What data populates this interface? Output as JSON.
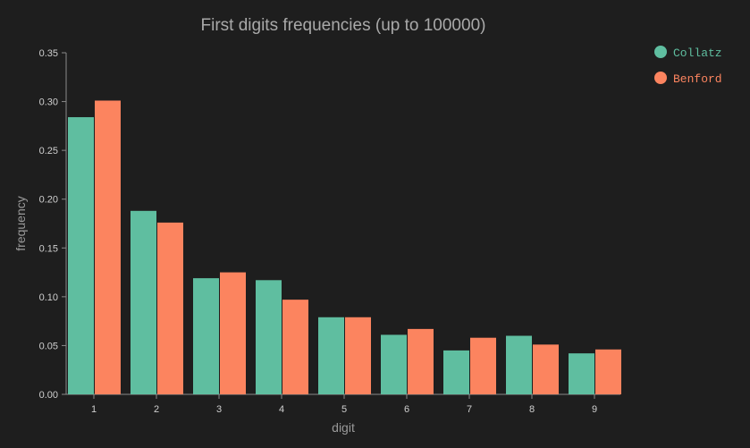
{
  "chart_data": {
    "type": "bar",
    "title": "First digits frequencies (up to 100000)",
    "xlabel": "digit",
    "ylabel": "frequency",
    "categories": [
      "1",
      "2",
      "3",
      "4",
      "5",
      "6",
      "7",
      "8",
      "9"
    ],
    "ylim": [
      0,
      0.35
    ],
    "yticks": [
      "0.00",
      "0.05",
      "0.10",
      "0.15",
      "0.20",
      "0.25",
      "0.30",
      "0.35"
    ],
    "grid": false,
    "legend_position": "top-right",
    "series": [
      {
        "name": "Collatz",
        "color": "#5fbea0",
        "values": [
          0.284,
          0.188,
          0.119,
          0.117,
          0.079,
          0.061,
          0.045,
          0.06,
          0.042
        ]
      },
      {
        "name": "Benford",
        "color": "#fc845f",
        "values": [
          0.301,
          0.176,
          0.125,
          0.097,
          0.079,
          0.067,
          0.058,
          0.051,
          0.046
        ]
      }
    ]
  }
}
